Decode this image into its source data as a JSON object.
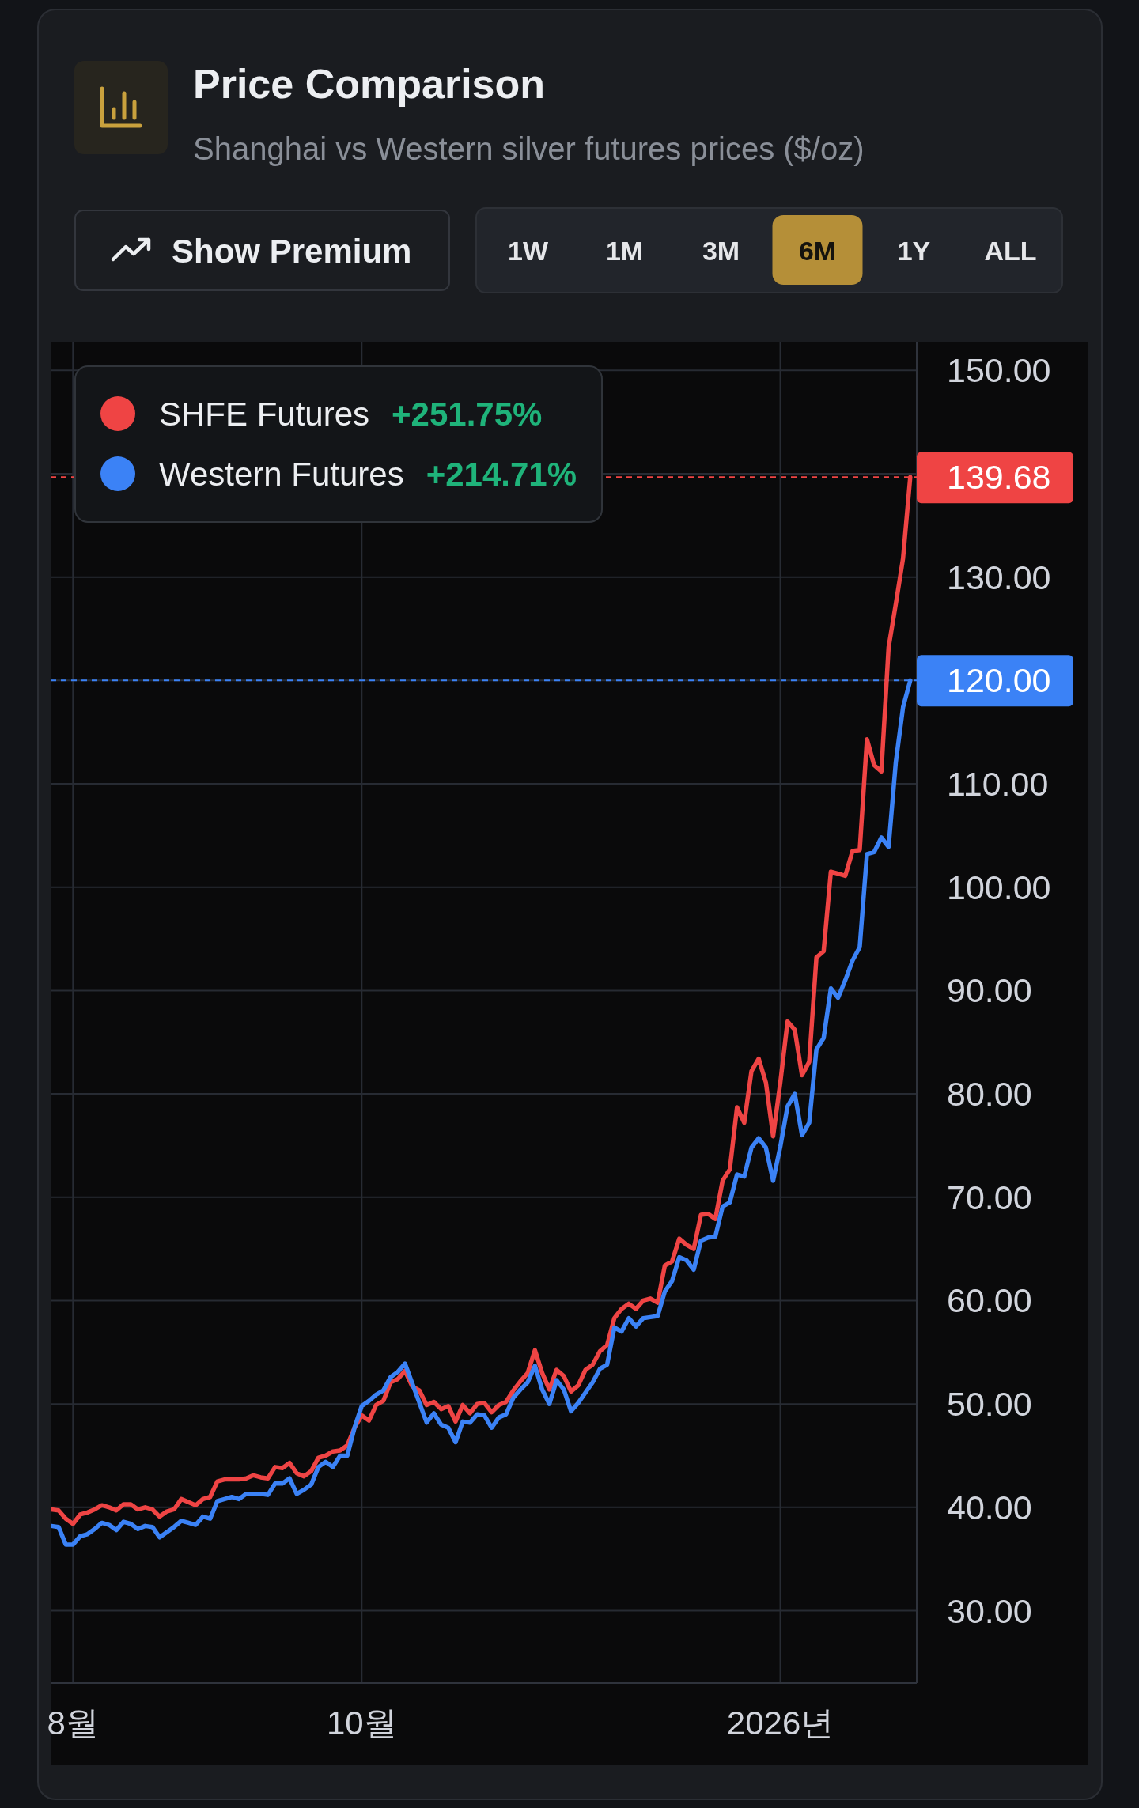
{
  "chart_data": {
    "type": "line",
    "title": "Price Comparison",
    "subtitle": "Shanghai vs Western silver futures prices ($/oz)",
    "categories": [
      null,
      null,
      null,
      "8월",
      null,
      null,
      null,
      null,
      null,
      null,
      null,
      null,
      null,
      null,
      null,
      null,
      null,
      null,
      null,
      null,
      null,
      null,
      null,
      null,
      null,
      null,
      null,
      null,
      null,
      null,
      null,
      null,
      null,
      null,
      null,
      null,
      null,
      null,
      null,
      null,
      null,
      null,
      null,
      "10월",
      null,
      null,
      null,
      null,
      null,
      null,
      null,
      null,
      null,
      null,
      null,
      null,
      null,
      null,
      null,
      null,
      null,
      null,
      null,
      null,
      null,
      null,
      null,
      null,
      null,
      null,
      null,
      null,
      null,
      null,
      null,
      null,
      null,
      null,
      null,
      null,
      null,
      null,
      null,
      null,
      null,
      null,
      null,
      null,
      null,
      null,
      null,
      null,
      null,
      null,
      null,
      null,
      null,
      null,
      null,
      null,
      null,
      "2026년",
      null,
      null,
      null,
      null,
      null,
      null,
      null,
      null,
      null,
      null,
      null,
      null,
      null,
      null,
      null,
      null,
      null,
      null
    ],
    "series": [
      {
        "name": "SHFE Futures",
        "color": "#ef4444",
        "values": [
          39.8,
          39.7,
          38.9,
          38.4,
          39.3,
          39.5,
          39.8,
          40.2,
          40.0,
          39.7,
          40.3,
          40.3,
          39.8,
          40.0,
          39.8,
          39.1,
          39.6,
          39.8,
          40.8,
          40.5,
          40.2,
          40.8,
          41.0,
          42.5,
          42.7,
          42.7,
          42.7,
          42.8,
          43.1,
          42.9,
          42.8,
          43.9,
          43.8,
          44.3,
          43.3,
          43.0,
          43.5,
          44.8,
          45.0,
          45.4,
          45.5,
          46.0,
          47.7,
          48.9,
          48.4,
          49.9,
          50.3,
          52.1,
          52.4,
          53.2,
          51.7,
          51.3,
          49.9,
          50.2,
          49.5,
          49.8,
          48.3,
          49.9,
          49.1,
          50.0,
          50.1,
          49.2,
          49.9,
          50.2,
          51.3,
          52.2,
          53.0,
          55.2,
          53.0,
          51.4,
          53.3,
          52.7,
          51.2,
          51.8,
          53.3,
          53.8,
          55.1,
          55.7,
          58.3,
          59.2,
          59.7,
          59.2,
          60.0,
          60.2,
          59.8,
          63.4,
          63.8,
          66.0,
          65.4,
          65.0,
          68.3,
          68.4,
          67.9,
          71.6,
          72.7,
          78.7,
          77.2,
          82.2,
          83.4,
          81.1,
          75.9,
          81.1,
          87.0,
          86.2,
          81.8,
          83.1,
          93.2,
          93.8,
          101.5,
          101.3,
          101.1,
          103.5,
          103.6,
          114.3,
          111.8,
          111.2,
          123.2,
          127.4,
          131.8,
          139.68
        ]
      },
      {
        "name": "Western Futures",
        "color": "#3b82f6",
        "values": [
          38.2,
          38.1,
          36.4,
          36.4,
          37.2,
          37.4,
          37.9,
          38.5,
          38.3,
          37.8,
          38.6,
          38.4,
          37.9,
          38.2,
          38.1,
          37.1,
          37.6,
          38.1,
          38.7,
          38.5,
          38.3,
          39.1,
          38.9,
          40.6,
          40.8,
          41.0,
          40.8,
          41.3,
          41.3,
          41.3,
          41.2,
          42.3,
          42.3,
          42.8,
          41.3,
          41.7,
          42.2,
          43.9,
          44.4,
          43.9,
          45.0,
          45.0,
          47.7,
          49.8,
          50.3,
          50.9,
          51.3,
          52.6,
          53.1,
          53.9,
          52.0,
          50.1,
          48.2,
          49.1,
          48.0,
          47.7,
          46.3,
          48.3,
          48.2,
          49.0,
          48.9,
          47.7,
          48.7,
          49.0,
          50.6,
          51.4,
          52.1,
          53.7,
          51.4,
          50.0,
          52.3,
          51.4,
          49.3,
          50.1,
          51.1,
          52.1,
          53.4,
          53.8,
          57.4,
          57.0,
          58.3,
          57.5,
          58.3,
          58.4,
          58.5,
          60.9,
          61.9,
          64.2,
          63.9,
          63.0,
          65.8,
          66.1,
          66.2,
          69.1,
          69.5,
          72.2,
          72.0,
          74.8,
          75.7,
          74.8,
          71.6,
          74.9,
          78.8,
          80.0,
          76.0,
          77.2,
          84.3,
          85.4,
          90.2,
          89.3,
          91.0,
          92.9,
          94.2,
          103.2,
          103.4,
          104.8,
          103.9,
          112.1,
          117.4,
          120
        ]
      }
    ],
    "ylim": [
      23,
      152.7
    ],
    "yticks": [
      {
        "value": 30,
        "label": "30.00"
      },
      {
        "value": 40,
        "label": "40.00"
      },
      {
        "value": 50,
        "label": "50.00"
      },
      {
        "value": 60,
        "label": "60.00"
      },
      {
        "value": 70,
        "label": "70.00"
      },
      {
        "value": 80,
        "label": "80.00"
      },
      {
        "value": 90,
        "label": "90.00"
      },
      {
        "value": 100,
        "label": "100.00"
      },
      {
        "value": 110,
        "label": "110.00"
      },
      {
        "value": 120,
        "label": null
      },
      {
        "value": 130,
        "label": "130.00"
      },
      {
        "value": 140,
        "label": null
      },
      {
        "value": 150,
        "label": "150.00"
      }
    ],
    "grid": true,
    "legend": "top left",
    "ref_lines": [
      {
        "axis": "y",
        "value": 139.68,
        "label": "139.68",
        "color": "#ef4444",
        "line_style": "dashed"
      },
      {
        "axis": "y",
        "value": 120,
        "label": "120.00",
        "color": "#3b82f6",
        "line_style": "dashed"
      }
    ],
    "annotations": [
      "+251.75%",
      "+214.71%",
      "Show Premium",
      "1W",
      "1M",
      "3M",
      "6M",
      "1Y",
      "ALL"
    ]
  }
}
